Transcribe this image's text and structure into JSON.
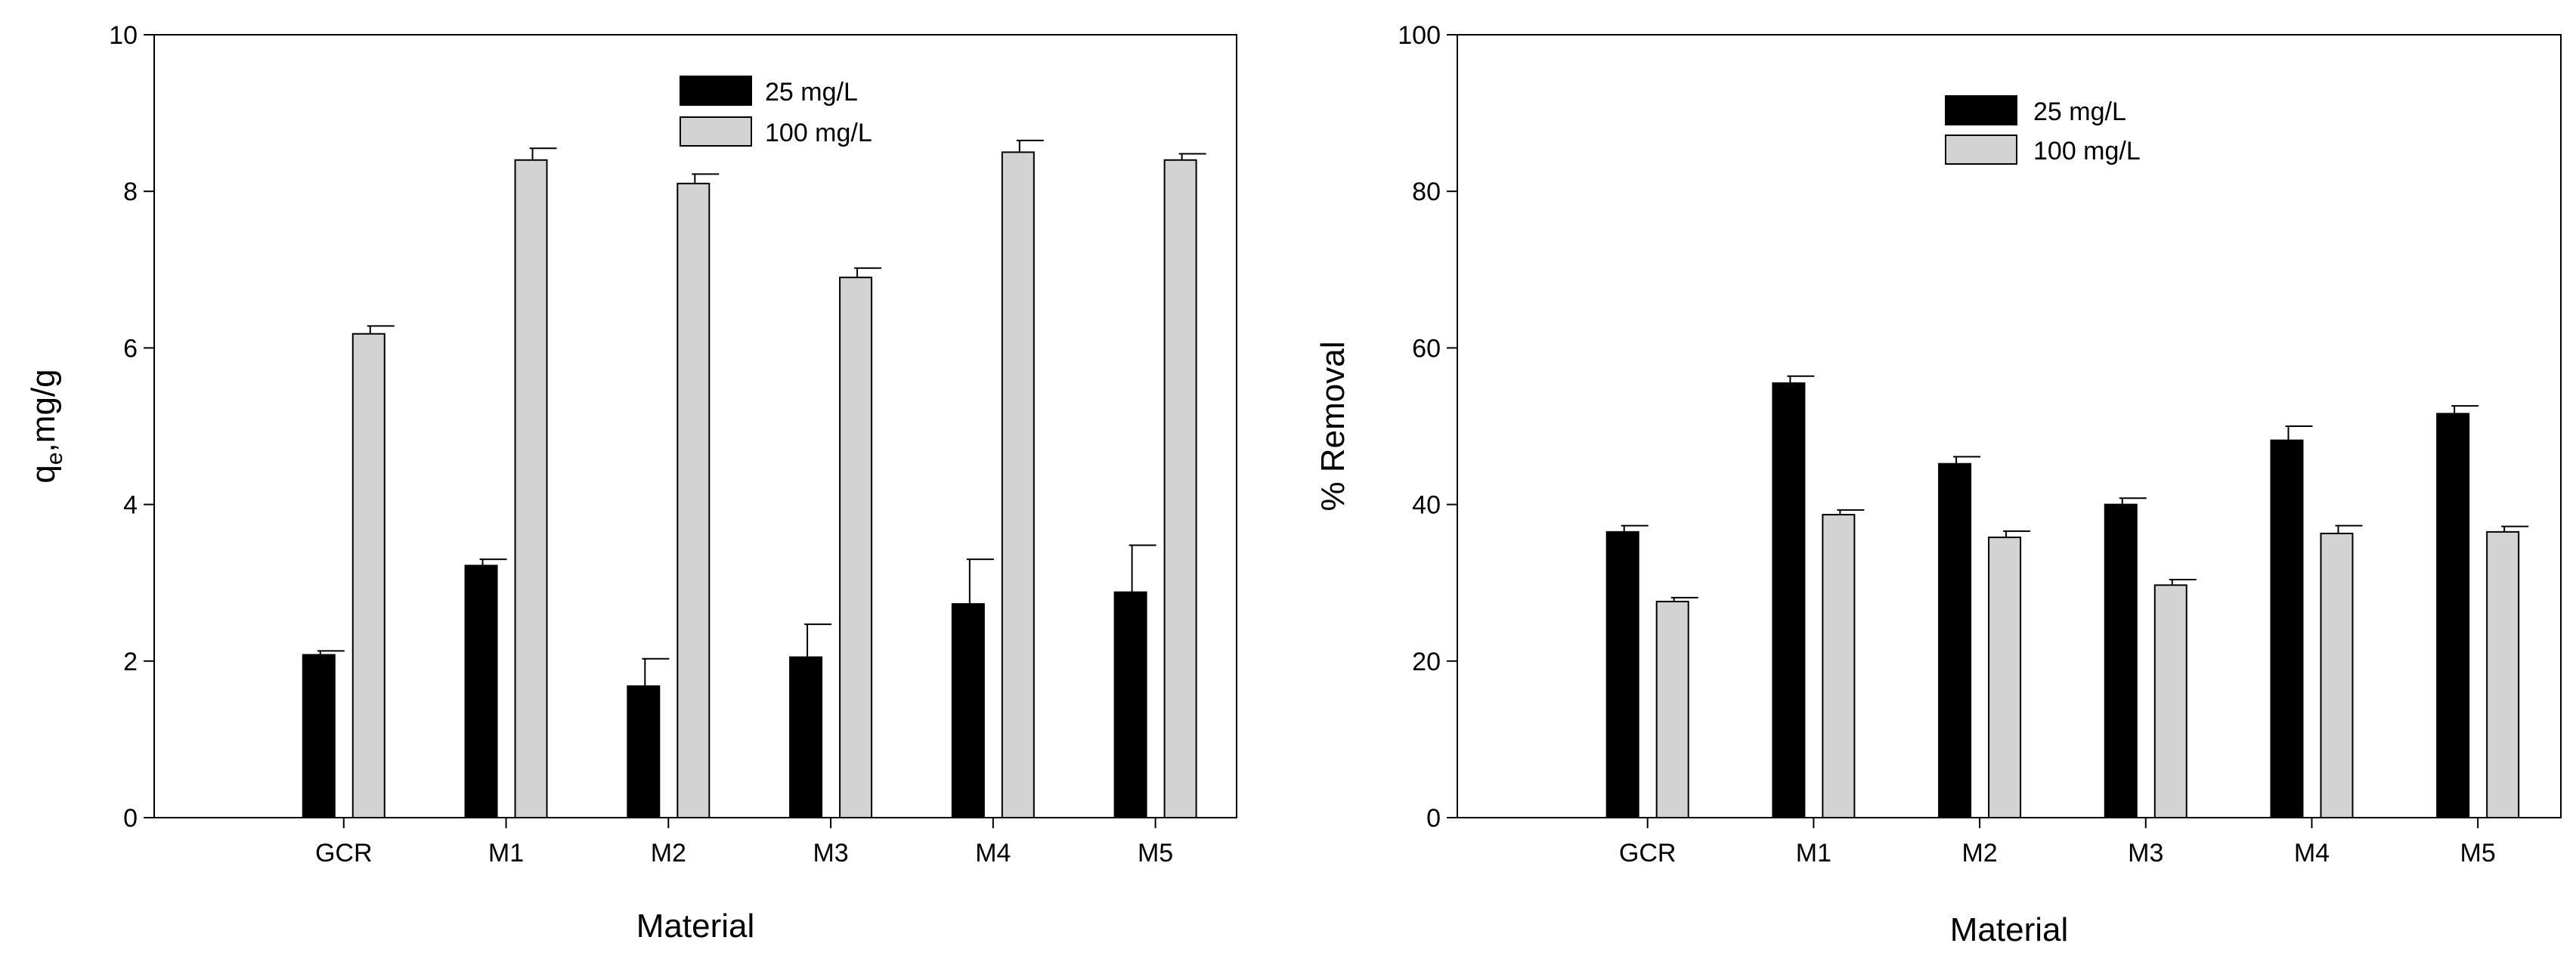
{
  "chart_data": [
    {
      "type": "bar",
      "title": "",
      "xlabel": "Material",
      "ylabel_main": "q",
      "ylabel_sub": "e",
      "ylabel_rest": ",mg/g",
      "categories": [
        "GCR",
        "M1",
        "M2",
        "M3",
        "M4",
        "M5"
      ],
      "ylim": [
        0,
        10
      ],
      "yticks": [
        "0",
        "2",
        "4",
        "6",
        "8",
        "10"
      ],
      "legend_position": "top-center",
      "series": [
        {
          "name": "25 mg/L",
          "color": "#000000",
          "values": [
            2.08,
            3.22,
            1.68,
            2.05,
            2.73,
            2.88
          ],
          "errors": [
            0.05,
            0.08,
            0.35,
            0.42,
            0.57,
            0.6
          ]
        },
        {
          "name": "100 mg/L",
          "color": "#d3d3d3",
          "values": [
            6.18,
            8.4,
            8.1,
            6.9,
            8.5,
            8.4
          ],
          "errors": [
            0.1,
            0.15,
            0.12,
            0.12,
            0.15,
            0.08
          ]
        }
      ]
    },
    {
      "type": "bar",
      "title": "",
      "xlabel": "Material",
      "ylabel": "% Removal",
      "categories": [
        "GCR",
        "M1",
        "M2",
        "M3",
        "M4",
        "M5"
      ],
      "ylim": [
        0,
        100
      ],
      "yticks": [
        "0",
        "20",
        "40",
        "60",
        "80",
        "100"
      ],
      "legend_position": "top-center",
      "series": [
        {
          "name": "25 mg/L",
          "color": "#000000",
          "values": [
            36.5,
            55.5,
            45.2,
            40.0,
            48.2,
            51.6
          ],
          "errors": [
            0.8,
            0.9,
            0.9,
            0.8,
            1.8,
            1.0
          ]
        },
        {
          "name": "100 mg/L",
          "color": "#d3d3d3",
          "values": [
            27.6,
            38.7,
            35.8,
            29.7,
            36.3,
            36.5
          ],
          "errors": [
            0.5,
            0.6,
            0.8,
            0.7,
            1.0,
            0.7
          ]
        }
      ]
    }
  ]
}
